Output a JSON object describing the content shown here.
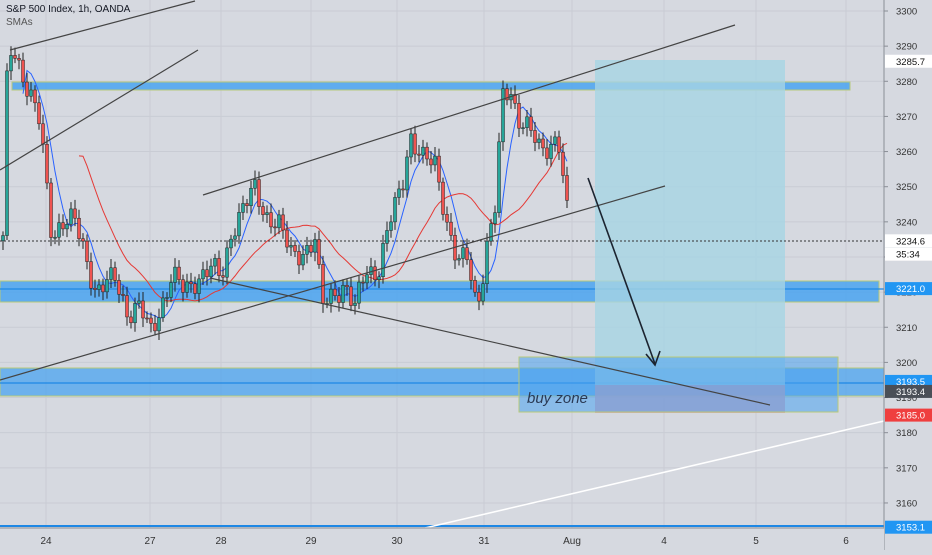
{
  "chart_data": {
    "type": "candlestick",
    "title": "S&P 500 Index, 1h, OANDA",
    "subtitle": "SMAs",
    "ylim": [
      3150,
      3305
    ],
    "x_ticks": [
      "24",
      "27",
      "28",
      "29",
      "30",
      "31",
      "Aug",
      "4",
      "5",
      "6"
    ],
    "y_ticks": [
      3160,
      3170,
      3180,
      3190,
      3200,
      3210,
      3220,
      3230,
      3240,
      3250,
      3260,
      3270,
      3280,
      3290,
      3300
    ],
    "price_labels": [
      {
        "text": "3285.7",
        "value": 3285.7,
        "color": "#ffffff"
      },
      {
        "text": "3234.6",
        "value": 3234.6,
        "color": "#ffffff"
      },
      {
        "text": "35:34",
        "value": 3230.8,
        "color": "#ffffff"
      },
      {
        "text": "3221.0",
        "value": 3221.0,
        "color": "#2196f3"
      },
      {
        "text": "3193.5",
        "value": 3193.5,
        "color": "#2196f3"
      },
      {
        "text": "3193.4",
        "value": 3193.4,
        "color": "#4a4f57"
      },
      {
        "text": "3185.0",
        "value": 3185.0,
        "color": "#ef3f3f"
      },
      {
        "text": "3153.1",
        "value": 3153.1,
        "color": "#2196f3"
      }
    ],
    "annotation": "buy zone",
    "colors": {
      "up": "#26a69a",
      "down": "#ef5350",
      "zone": "#4aa3f0",
      "target_box": "#a6d5e3",
      "stop_box": "#d4a0b0",
      "sma_fast": "#2962ff",
      "sma_slow": "#e53935"
    }
  }
}
